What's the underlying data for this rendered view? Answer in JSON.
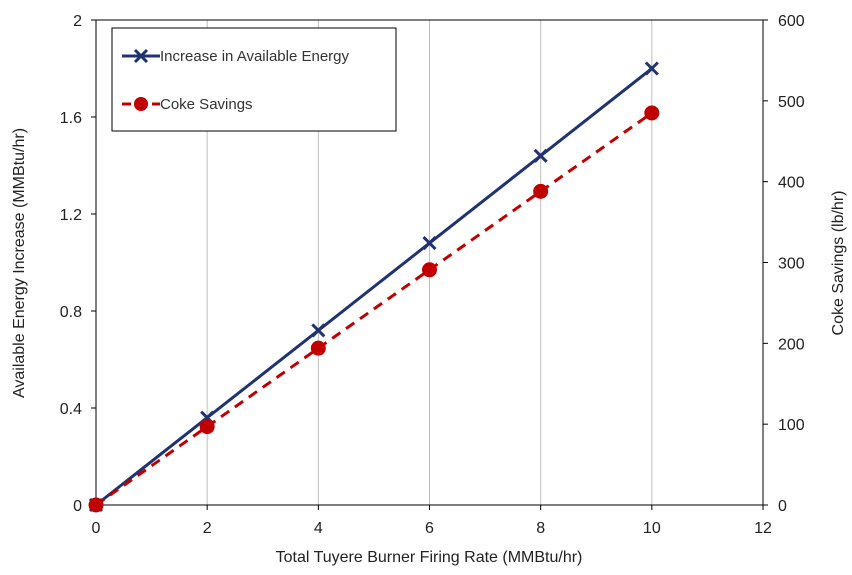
{
  "chart_data": {
    "type": "line",
    "xlabel": "Total Tuyere Burner Firing Rate (MMBtu/hr)",
    "ylabel": "Available Energy Increase (MMBtu/hr)",
    "y2label": "Coke Savings (lb/hr)",
    "xlim": [
      0,
      12
    ],
    "ylim": [
      0,
      2
    ],
    "y2lim": [
      0,
      600
    ],
    "x_ticks": [
      0,
      2,
      4,
      6,
      8,
      10,
      12
    ],
    "y_ticks": [
      0,
      0.4,
      0.8,
      1.2,
      1.6,
      2
    ],
    "y_tick_labels": [
      "0",
      "0.4",
      "0.8",
      "1.2",
      "1.6",
      "2"
    ],
    "y2_ticks": [
      0,
      100,
      200,
      300,
      400,
      500,
      600
    ],
    "grid": "vertical",
    "legend": "top-left",
    "series": [
      {
        "name": "Increase in Available Energy",
        "axis": "left",
        "color": "#1f3370",
        "marker": "x",
        "line": "solid",
        "x": [
          0,
          2,
          4,
          6,
          8,
          10
        ],
        "y": [
          0,
          0.36,
          0.72,
          1.08,
          1.44,
          1.8
        ]
      },
      {
        "name": "Coke Savings",
        "axis": "right",
        "color": "#c00000",
        "marker": "circle",
        "line": "dashed",
        "x": [
          0,
          2,
          4,
          6,
          8,
          10
        ],
        "y": [
          0,
          97,
          194,
          291,
          388,
          485
        ]
      }
    ]
  }
}
